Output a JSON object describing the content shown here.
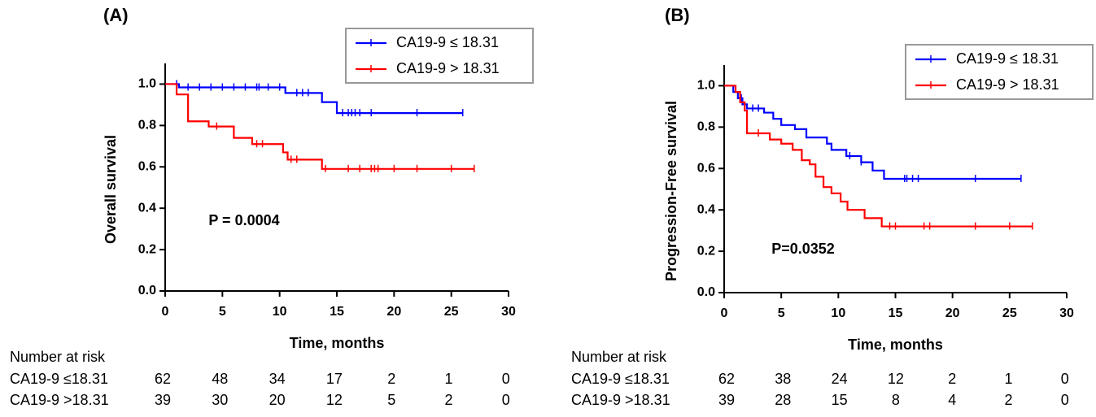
{
  "chart_data": [
    {
      "type": "step",
      "panel_label": "(A)",
      "ylabel": "Overall survival",
      "xlabel": "Time, months",
      "annotation": "P = 0.0004",
      "xlim": [
        0,
        30
      ],
      "ylim": [
        0,
        1.1
      ],
      "xticks": [
        0,
        5,
        10,
        15,
        20,
        25,
        30
      ],
      "yticks": [
        {
          "value": 0,
          "label": "0.0"
        },
        {
          "value": 0.2,
          "label": "0.2"
        },
        {
          "value": 0.4,
          "label": "0.4"
        },
        {
          "value": 0.6,
          "label": "0.6"
        },
        {
          "value": 0.8,
          "label": "0.8"
        },
        {
          "value": 1,
          "label": "1.0"
        }
      ],
      "legend_position": "top-right",
      "series": [
        {
          "name": "CA19-9 ≤ 18.31",
          "color": "#0000ff",
          "x": [
            0,
            1.2,
            10.5,
            13.7,
            15,
            26
          ],
          "values": [
            1,
            0.984,
            0.957,
            0.913,
            0.86,
            0.86
          ],
          "censored": [
            1,
            2,
            3,
            4,
            5,
            6,
            7,
            8,
            8.2,
            9,
            10,
            11.5,
            12,
            12.5,
            15.5,
            16,
            16.3,
            16.6,
            17,
            18,
            22,
            26
          ]
        },
        {
          "name": "CA19-9 > 18.31",
          "color": "#ff0000",
          "x": [
            0,
            1,
            2,
            3.8,
            6,
            7.6,
            10.3,
            10.7,
            13.7,
            27
          ],
          "values": [
            1,
            0.95,
            0.82,
            0.795,
            0.74,
            0.71,
            0.67,
            0.635,
            0.59,
            0.59
          ],
          "censored": [
            4.5,
            8,
            8.5,
            11,
            11.5,
            14,
            16,
            17,
            18,
            18.3,
            18.6,
            20,
            22,
            25,
            27
          ]
        }
      ],
      "risk_table": {
        "title": "Number at risk",
        "rows": [
          {
            "label": "CA19-9 ≤18.31",
            "values": [
              62,
              48,
              34,
              17,
              2,
              1,
              0
            ]
          },
          {
            "label": "CA19-9 >18.31",
            "values": [
              39,
              30,
              20,
              12,
              5,
              2,
              0
            ]
          }
        ]
      }
    },
    {
      "type": "step",
      "panel_label": "(B)",
      "ylabel": "Progression-Free survival",
      "xlabel": "Time, months",
      "annotation": "P=0.0352",
      "xlim": [
        0,
        30
      ],
      "ylim": [
        0,
        1.1
      ],
      "xticks": [
        0,
        5,
        10,
        15,
        20,
        25,
        30
      ],
      "yticks": [
        {
          "value": 0,
          "label": "0.0"
        },
        {
          "value": 0.2,
          "label": "0.2"
        },
        {
          "value": 0.4,
          "label": "0.4"
        },
        {
          "value": 0.6,
          "label": "0.6"
        },
        {
          "value": 0.8,
          "label": "0.8"
        },
        {
          "value": 1,
          "label": "1.0"
        }
      ],
      "legend_position": "top-right",
      "series": [
        {
          "name": "CA19-9 ≤ 18.31",
          "color": "#0000ff",
          "x": [
            0,
            0.8,
            1.2,
            1.6,
            2,
            3.5,
            4.3,
            5,
            6.2,
            7.2,
            9,
            9.4,
            10.7,
            12,
            13,
            14,
            26
          ],
          "values": [
            1,
            0.97,
            0.94,
            0.91,
            0.89,
            0.87,
            0.84,
            0.81,
            0.79,
            0.75,
            0.72,
            0.69,
            0.66,
            0.63,
            0.59,
            0.55,
            0.55
          ],
          "censored": [
            1.5,
            2.5,
            3,
            11,
            12,
            15.8,
            16,
            16.5,
            17,
            22,
            26
          ]
        },
        {
          "name": "CA19-9 > 18.31",
          "color": "#ff0000",
          "x": [
            0,
            1,
            1.4,
            1.8,
            2,
            4,
            5,
            6,
            6.8,
            7.5,
            8,
            8.7,
            9.4,
            10.2,
            10.8,
            12.3,
            13.8,
            27
          ],
          "values": [
            1,
            0.97,
            0.92,
            0.88,
            0.77,
            0.74,
            0.72,
            0.69,
            0.64,
            0.62,
            0.56,
            0.51,
            0.48,
            0.44,
            0.4,
            0.36,
            0.32,
            0.32
          ],
          "censored": [
            3,
            14.5,
            15,
            17.5,
            18,
            22,
            25,
            27
          ]
        }
      ],
      "risk_table": {
        "title": "Number at risk",
        "rows": [
          {
            "label": "CA19-9 ≤18.31",
            "values": [
              62,
              38,
              24,
              12,
              2,
              1,
              0
            ]
          },
          {
            "label": "CA19-9 >18.31",
            "values": [
              39,
              28,
              15,
              8,
              4,
              2,
              0
            ]
          }
        ]
      }
    }
  ]
}
